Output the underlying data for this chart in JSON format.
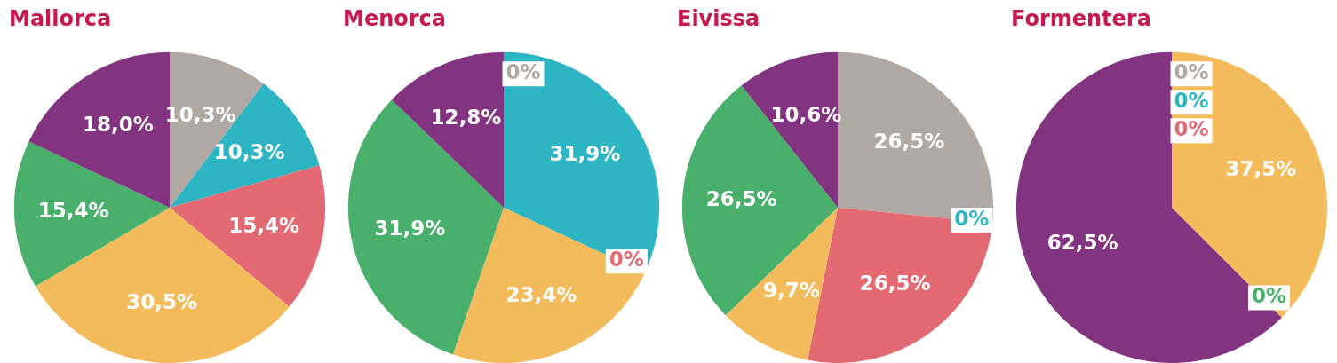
{
  "chart_data": [
    {
      "type": "pie",
      "title": "Mallorca",
      "categories": [
        null,
        null,
        null,
        null,
        null,
        null
      ],
      "values": [
        10.3,
        10.3,
        15.4,
        30.5,
        15.4,
        18.0
      ],
      "value_labels": [
        "10,3%",
        "10,3%",
        "15,4%",
        "30,5%",
        "15,4%",
        "18,0%"
      ],
      "colors": [
        "#b0a8a2",
        "#2db5c4",
        "#e36a72",
        "#f4bb5c",
        "#48b06a",
        "#823480"
      ],
      "legend": false
    },
    {
      "type": "pie",
      "title": "Menorca",
      "categories": [
        null,
        null,
        null,
        null,
        null,
        null
      ],
      "values": [
        0,
        31.9,
        0,
        23.4,
        31.9,
        12.8
      ],
      "value_labels": [
        "0%",
        "31,9%",
        "0%",
        "23,4%",
        "31,9%",
        "12,8%"
      ],
      "colors": [
        "#b0a8a2",
        "#2db5c4",
        "#e36a72",
        "#f4bb5c",
        "#48b06a",
        "#823480"
      ],
      "legend": false
    },
    {
      "type": "pie",
      "title": "Eivissa",
      "categories": [
        null,
        null,
        null,
        null,
        null,
        null
      ],
      "values": [
        26.5,
        0,
        26.5,
        9.7,
        26.5,
        10.6
      ],
      "value_labels": [
        "26,5%",
        "0%",
        "26,5%",
        "9,7%",
        "26,5%",
        "10,6%"
      ],
      "colors": [
        "#b0a8a2",
        "#2db5c4",
        "#e36a72",
        "#f4bb5c",
        "#48b06a",
        "#823480"
      ],
      "legend": false
    },
    {
      "type": "pie",
      "title": "Formentera",
      "categories": [
        null,
        null,
        null,
        null,
        null,
        null
      ],
      "values": [
        0,
        0,
        0,
        37.5,
        0,
        62.5
      ],
      "value_labels": [
        "0%",
        "0%",
        "0%",
        "37,5%",
        "0%",
        "62,5%"
      ],
      "colors": [
        "#b0a8a2",
        "#2db5c4",
        "#e36a72",
        "#f4bb5c",
        "#48b06a",
        "#823480"
      ],
      "legend": false
    }
  ]
}
